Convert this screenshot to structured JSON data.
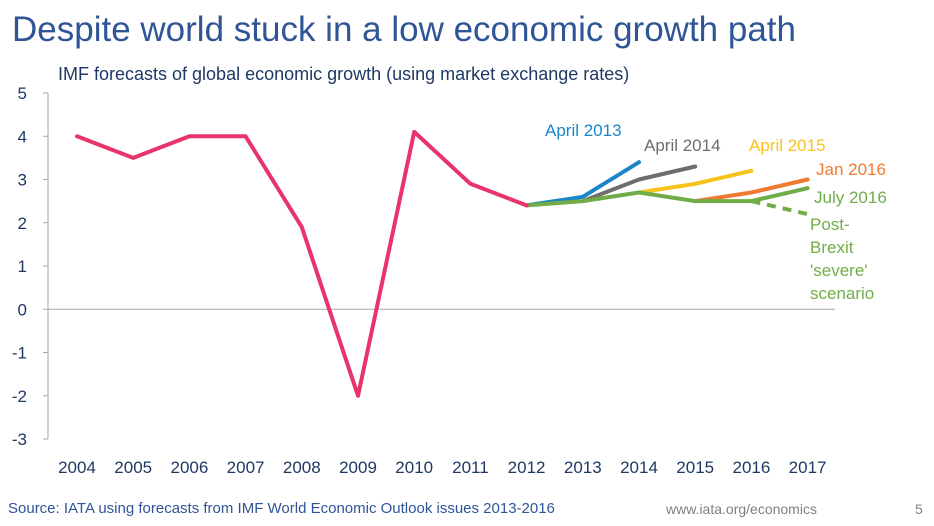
{
  "slide": {
    "title": "Despite world stuck in a low economic growth path",
    "source": "Source: IATA using forecasts from IMF World Economic Outlook issues 2013-2016",
    "website": "www.iata.org/economics",
    "page_number": "5"
  },
  "chart_data": {
    "type": "line",
    "title": "IMF forecasts of global economic growth (using market exchange rates)",
    "xlabel": "",
    "ylabel": "",
    "categories": [
      "2004",
      "2005",
      "2006",
      "2007",
      "2008",
      "2009",
      "2010",
      "2011",
      "2012",
      "2013",
      "2014",
      "2015",
      "2016",
      "2017"
    ],
    "ylim": [
      -3,
      5
    ],
    "yticks": [
      5,
      4,
      3,
      2,
      1,
      0,
      -1,
      -2,
      -3
    ],
    "grid": false,
    "series": [
      {
        "name": "",
        "color": "#e8336b",
        "dash": false,
        "points": [
          {
            "x": "2004",
            "y": 4.0
          },
          {
            "x": "2005",
            "y": 3.5
          },
          {
            "x": "2006",
            "y": 4.0
          },
          {
            "x": "2007",
            "y": 4.0
          },
          {
            "x": "2008",
            "y": 1.9
          },
          {
            "x": "2009",
            "y": -2.0
          },
          {
            "x": "2010",
            "y": 4.1
          },
          {
            "x": "2011",
            "y": 2.9
          },
          {
            "x": "2012",
            "y": 2.4
          }
        ]
      },
      {
        "name": "April 2013",
        "color": "#1a86c8",
        "dash": false,
        "points": [
          {
            "x": "2012",
            "y": 2.4
          },
          {
            "x": "2013",
            "y": 2.6
          },
          {
            "x": "2014",
            "y": 3.4
          }
        ]
      },
      {
        "name": "April 2014",
        "color": "#6e6e6e",
        "dash": false,
        "points": [
          {
            "x": "2013",
            "y": 2.5
          },
          {
            "x": "2014",
            "y": 3.0
          },
          {
            "x": "2015",
            "y": 3.3
          }
        ]
      },
      {
        "name": "April 2015",
        "color": "#f7c31b",
        "dash": false,
        "points": [
          {
            "x": "2014",
            "y": 2.7
          },
          {
            "x": "2015",
            "y": 2.9
          },
          {
            "x": "2016",
            "y": 3.2
          }
        ]
      },
      {
        "name": "Jan 2016",
        "color": "#f07a32",
        "dash": false,
        "points": [
          {
            "x": "2015",
            "y": 2.5
          },
          {
            "x": "2016",
            "y": 2.7
          },
          {
            "x": "2017",
            "y": 3.0
          }
        ]
      },
      {
        "name": "July 2016",
        "color": "#70ad47",
        "dash": false,
        "points": [
          {
            "x": "2012",
            "y": 2.4
          },
          {
            "x": "2013",
            "y": 2.5
          },
          {
            "x": "2014",
            "y": 2.7
          },
          {
            "x": "2015",
            "y": 2.5
          },
          {
            "x": "2016",
            "y": 2.5
          },
          {
            "x": "2017",
            "y": 2.8
          }
        ]
      },
      {
        "name": "Post-Brexit 'severe' scenario",
        "color": "#70ad47",
        "dash": true,
        "points": [
          {
            "x": "2016",
            "y": 2.5
          },
          {
            "x": "2017",
            "y": 2.2
          }
        ]
      }
    ],
    "annotations": [
      {
        "text": "April 2013",
        "color": "#1a86c8"
      },
      {
        "text": "April 2014",
        "color": "#6e6e6e"
      },
      {
        "text": "April 2015",
        "color": "#f7c31b"
      },
      {
        "text": "Jan 2016",
        "color": "#f07a32"
      },
      {
        "text": "July 2016",
        "color": "#70ad47"
      },
      {
        "text": "Post-",
        "color": "#70ad47"
      },
      {
        "text": "Brexit",
        "color": "#70ad47"
      },
      {
        "text": "'severe'",
        "color": "#70ad47"
      },
      {
        "text": "scenario",
        "color": "#70ad47"
      }
    ]
  }
}
